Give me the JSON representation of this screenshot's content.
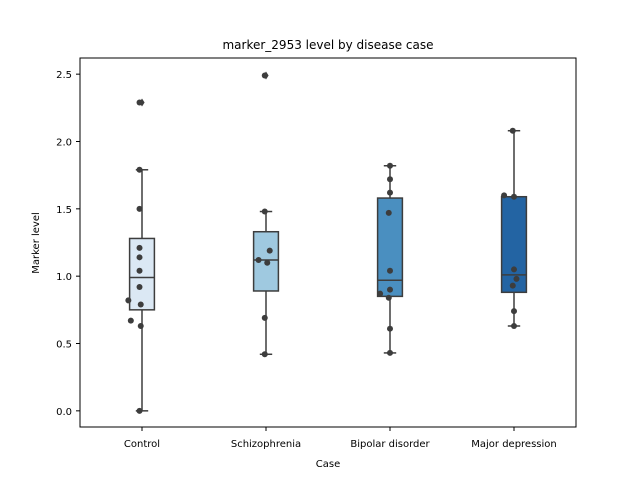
{
  "chart_data": {
    "type": "box",
    "title": "marker_2953 level by disease case",
    "xlabel": "Case",
    "ylabel": "Marker level",
    "ylim": [
      -0.12,
      2.62
    ],
    "yticks": [
      0.0,
      0.5,
      1.0,
      1.5,
      2.0,
      2.5
    ],
    "ytick_labels": [
      "0.0",
      "0.5",
      "1.0",
      "1.5",
      "2.0",
      "2.5"
    ],
    "grid": false,
    "categories": [
      "Control",
      "Schizophrenia",
      "Bipolar disorder",
      "Major depression"
    ],
    "colors": [
      "#dbe8f4",
      "#9fc9e0",
      "#4a8fc0",
      "#2364a3"
    ],
    "boxes": [
      {
        "q1": 0.75,
        "median": 0.99,
        "q3": 1.28,
        "whisker_low": 0.0,
        "whisker_high": 1.79,
        "fliers": [
          2.29
        ]
      },
      {
        "q1": 0.89,
        "median": 1.12,
        "q3": 1.33,
        "whisker_low": 0.42,
        "whisker_high": 1.48,
        "fliers": [
          2.49
        ]
      },
      {
        "q1": 0.85,
        "median": 0.97,
        "q3": 1.58,
        "whisker_low": 0.43,
        "whisker_high": 1.82,
        "fliers": []
      },
      {
        "q1": 0.88,
        "median": 1.01,
        "q3": 1.59,
        "whisker_low": 0.63,
        "whisker_high": 2.08,
        "fliers": []
      }
    ],
    "points": [
      [
        {
          "dx": -0.02,
          "y": 2.29
        },
        {
          "dx": -0.02,
          "y": 1.79
        },
        {
          "dx": -0.02,
          "y": 1.5
        },
        {
          "dx": -0.02,
          "y": 1.21
        },
        {
          "dx": -0.02,
          "y": 1.14
        },
        {
          "dx": -0.02,
          "y": 1.04
        },
        {
          "dx": -0.02,
          "y": 0.92
        },
        {
          "dx": -0.11,
          "y": 0.82
        },
        {
          "dx": -0.01,
          "y": 0.79
        },
        {
          "dx": -0.09,
          "y": 0.67
        },
        {
          "dx": -0.01,
          "y": 0.63
        },
        {
          "dx": -0.02,
          "y": 0.0
        }
      ],
      [
        {
          "dx": -0.01,
          "y": 2.49
        },
        {
          "dx": -0.01,
          "y": 1.48
        },
        {
          "dx": 0.03,
          "y": 1.19
        },
        {
          "dx": -0.06,
          "y": 1.12
        },
        {
          "dx": 0.01,
          "y": 1.1
        },
        {
          "dx": -0.01,
          "y": 0.69
        },
        {
          "dx": -0.01,
          "y": 0.42
        }
      ],
      [
        {
          "dx": 0.0,
          "y": 1.82
        },
        {
          "dx": 0.0,
          "y": 1.72
        },
        {
          "dx": 0.0,
          "y": 1.62
        },
        {
          "dx": -0.01,
          "y": 1.47
        },
        {
          "dx": 0.0,
          "y": 1.04
        },
        {
          "dx": 0.0,
          "y": 0.9
        },
        {
          "dx": -0.08,
          "y": 0.87
        },
        {
          "dx": -0.01,
          "y": 0.84
        },
        {
          "dx": 0.0,
          "y": 0.61
        },
        {
          "dx": 0.0,
          "y": 0.43
        }
      ],
      [
        {
          "dx": -0.01,
          "y": 2.08
        },
        {
          "dx": -0.08,
          "y": 1.6
        },
        {
          "dx": 0.0,
          "y": 1.59
        },
        {
          "dx": 0.0,
          "y": 1.05
        },
        {
          "dx": 0.02,
          "y": 0.98
        },
        {
          "dx": -0.01,
          "y": 0.93
        },
        {
          "dx": 0.0,
          "y": 0.74
        },
        {
          "dx": 0.0,
          "y": 0.63
        }
      ]
    ]
  }
}
